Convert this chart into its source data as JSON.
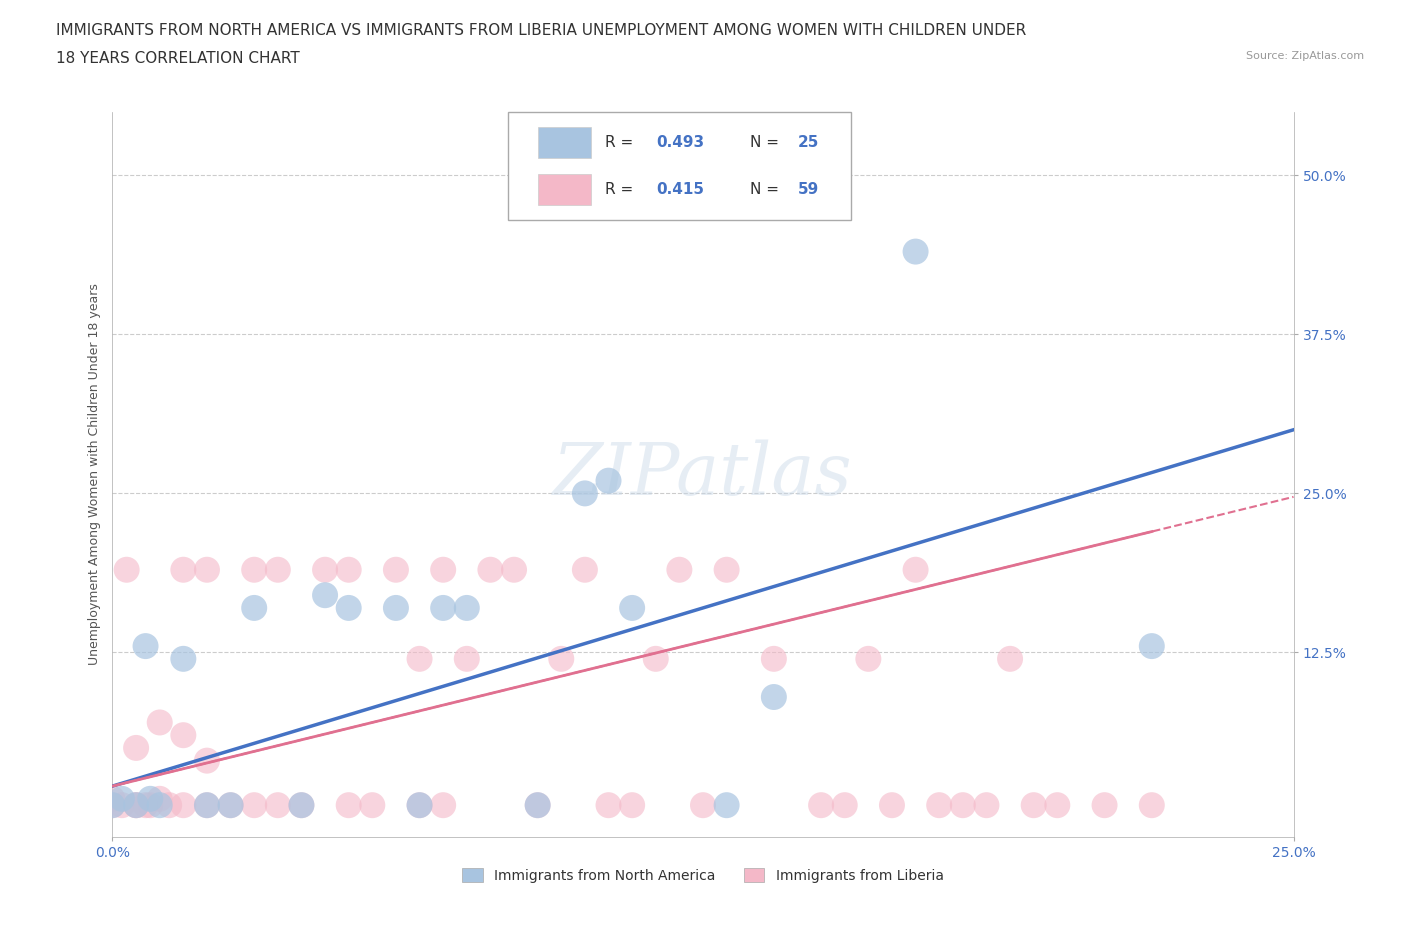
{
  "title_line1": "IMMIGRANTS FROM NORTH AMERICA VS IMMIGRANTS FROM LIBERIA UNEMPLOYMENT AMONG WOMEN WITH CHILDREN UNDER",
  "title_line2": "18 YEARS CORRELATION CHART",
  "source_text": "Source: ZipAtlas.com",
  "ylabel": "Unemployment Among Women with Children Under 18 years",
  "xlim": [
    0.0,
    0.25
  ],
  "ylim": [
    -0.02,
    0.55
  ],
  "ytick_labels": [
    "12.5%",
    "25.0%",
    "37.5%",
    "50.0%"
  ],
  "ytick_values": [
    0.125,
    0.25,
    0.375,
    0.5
  ],
  "grid_color": "#cccccc",
  "background_color": "#ffffff",
  "north_america_color": "#a8c4e0",
  "liberia_color": "#f4b8c8",
  "north_america_line_color": "#4472c4",
  "liberia_line_color": "#e07090",
  "R_north_america": 0.493,
  "N_north_america": 25,
  "R_liberia": 0.415,
  "N_liberia": 59,
  "north_america_x": [
    0.0,
    0.002,
    0.005,
    0.007,
    0.008,
    0.01,
    0.015,
    0.02,
    0.025,
    0.03,
    0.04,
    0.045,
    0.05,
    0.06,
    0.065,
    0.07,
    0.075,
    0.09,
    0.1,
    0.105,
    0.11,
    0.13,
    0.14,
    0.17,
    0.22
  ],
  "north_america_y": [
    0.005,
    0.01,
    0.005,
    0.13,
    0.01,
    0.005,
    0.12,
    0.005,
    0.005,
    0.16,
    0.005,
    0.17,
    0.16,
    0.16,
    0.005,
    0.16,
    0.16,
    0.005,
    0.25,
    0.26,
    0.16,
    0.005,
    0.09,
    0.44,
    0.13
  ],
  "liberia_x": [
    0.0,
    0.0,
    0.002,
    0.003,
    0.005,
    0.005,
    0.005,
    0.007,
    0.008,
    0.01,
    0.01,
    0.012,
    0.015,
    0.015,
    0.015,
    0.02,
    0.02,
    0.02,
    0.025,
    0.03,
    0.03,
    0.035,
    0.035,
    0.04,
    0.045,
    0.05,
    0.05,
    0.055,
    0.06,
    0.065,
    0.065,
    0.07,
    0.07,
    0.075,
    0.08,
    0.085,
    0.09,
    0.095,
    0.1,
    0.105,
    0.11,
    0.115,
    0.12,
    0.125,
    0.13,
    0.14,
    0.15,
    0.155,
    0.16,
    0.165,
    0.17,
    0.175,
    0.18,
    0.185,
    0.19,
    0.195,
    0.2,
    0.21,
    0.22
  ],
  "liberia_y": [
    0.005,
    0.01,
    0.005,
    0.19,
    0.005,
    0.005,
    0.05,
    0.005,
    0.005,
    0.01,
    0.07,
    0.005,
    0.005,
    0.06,
    0.19,
    0.005,
    0.04,
    0.19,
    0.005,
    0.005,
    0.19,
    0.005,
    0.19,
    0.005,
    0.19,
    0.005,
    0.19,
    0.005,
    0.19,
    0.005,
    0.12,
    0.005,
    0.19,
    0.12,
    0.19,
    0.19,
    0.005,
    0.12,
    0.19,
    0.005,
    0.005,
    0.12,
    0.19,
    0.005,
    0.19,
    0.12,
    0.005,
    0.005,
    0.12,
    0.005,
    0.19,
    0.005,
    0.005,
    0.005,
    0.12,
    0.005,
    0.005,
    0.005,
    0.005
  ],
  "watermark_text": "ZIPatlas",
  "title_fontsize": 11,
  "axis_label_fontsize": 9,
  "tick_fontsize": 10,
  "legend_fontsize": 11
}
